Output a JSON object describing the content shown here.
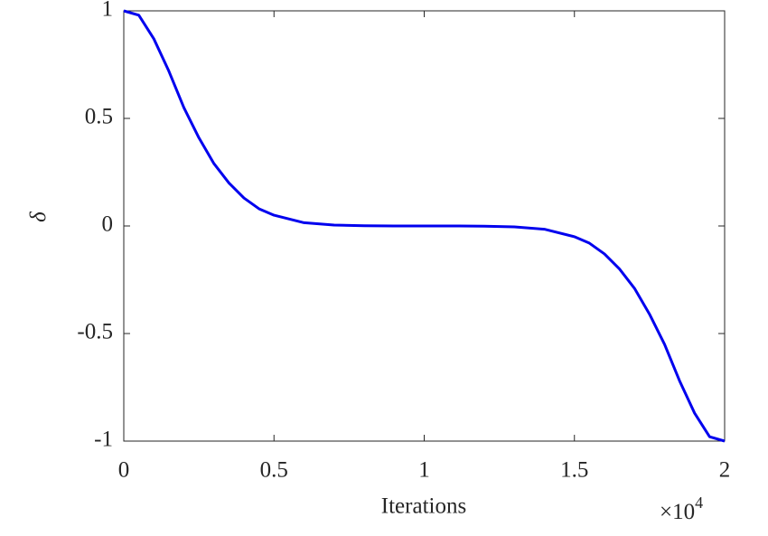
{
  "chart_data": {
    "type": "line",
    "x_label": "Iterations",
    "y_label": "δ",
    "x_multiplier": {
      "base": "×10",
      "exponent": "4"
    },
    "x": [
      0,
      0.05,
      0.1,
      0.15,
      0.2,
      0.25,
      0.3,
      0.35,
      0.4,
      0.45,
      0.5,
      0.6,
      0.7,
      0.8,
      0.9,
      1,
      1.1,
      1.2,
      1.3,
      1.4,
      1.5,
      1.55,
      1.6,
      1.65,
      1.7,
      1.75,
      1.8,
      1.85,
      1.9,
      1.95,
      2
    ],
    "series": [
      {
        "color": "#0000ee",
        "values": [
          1,
          0.98,
          0.87,
          0.72,
          0.55,
          0.41,
          0.29,
          0.2,
          0.13,
          0.08,
          0.05,
          0.015,
          0.004,
          0.001,
          0,
          0,
          0,
          -0.001,
          -0.004,
          -0.015,
          -0.05,
          -0.08,
          -0.13,
          -0.2,
          -0.29,
          -0.41,
          -0.55,
          -0.72,
          -0.87,
          -0.98,
          -1
        ]
      }
    ],
    "xlim": [
      0,
      2
    ],
    "xticks": [
      0,
      0.5,
      1,
      1.5,
      2
    ],
    "ylim": [
      -1,
      1
    ],
    "yticks": [
      -1,
      -0.5,
      0,
      0.5,
      1
    ]
  }
}
